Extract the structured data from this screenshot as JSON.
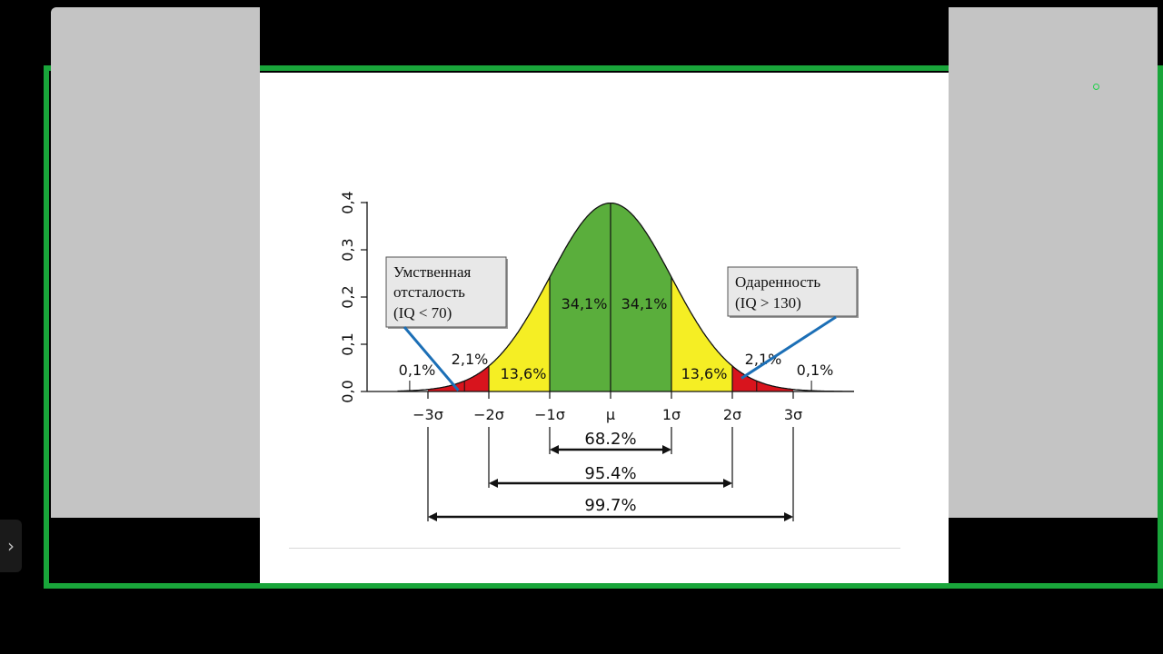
{
  "chart_data": {
    "type": "area",
    "x_tick_labels": [
      "−3σ",
      "−2σ",
      "−1σ",
      "μ",
      "1σ",
      "2σ",
      "3σ"
    ],
    "y_tick_labels": [
      "0,0",
      "0,1",
      "0,2",
      "0,3",
      "0,4"
    ],
    "ylim": [
      0,
      0.4
    ],
    "xlim": [
      -3.5,
      4
    ],
    "regions": [
      {
        "from": -1,
        "to": 0,
        "label": "34,1%",
        "color": "#5aae3c"
      },
      {
        "from": 0,
        "to": 1,
        "label": "34,1%",
        "color": "#5aae3c"
      },
      {
        "from": -2,
        "to": -1,
        "label": "13,6%",
        "color": "#f5ee24"
      },
      {
        "from": 1,
        "to": 2,
        "label": "13,6%",
        "color": "#f5ee24"
      },
      {
        "from": -3,
        "to": -2,
        "label": "2,1%",
        "color": "#d8141d"
      },
      {
        "from": 2,
        "to": 3,
        "label": "2,1%",
        "color": "#d8141d"
      },
      {
        "from": -3.5,
        "to": -3,
        "label": "0,1%",
        "color": "#ffffff"
      },
      {
        "from": 3,
        "to": 4,
        "label": "0,1%",
        "color": "#ffffff"
      }
    ],
    "spans": [
      {
        "from": -1,
        "to": 1,
        "label": "68.2%"
      },
      {
        "from": -2,
        "to": 2,
        "label": "95.4%"
      },
      {
        "from": -3,
        "to": 3,
        "label": "99.7%"
      }
    ],
    "callouts": [
      {
        "lines": [
          "Умственная",
          "отсталость",
          "(IQ < 70)"
        ],
        "points_to": -2.5
      },
      {
        "lines": [
          "Одаренность",
          "(IQ > 130)"
        ],
        "points_to": 2.15
      }
    ],
    "arrow_color": "#1c6fb6"
  }
}
